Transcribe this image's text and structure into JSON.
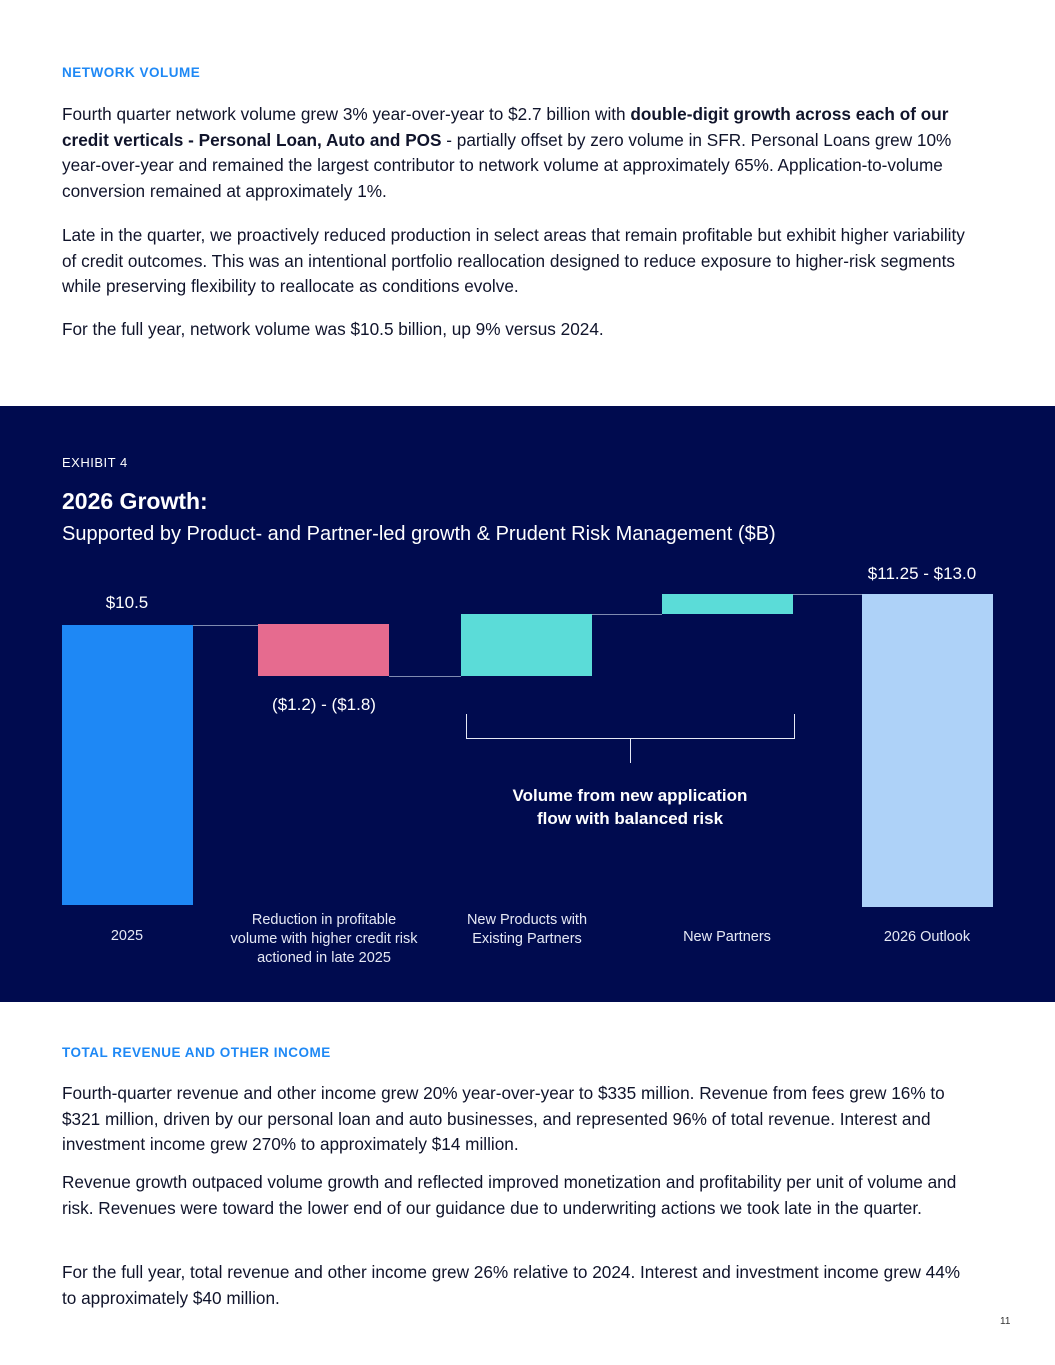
{
  "network_volume": {
    "heading": "NETWORK VOLUME",
    "p1_pre": "Fourth quarter network volume grew 3% year-over-year to $2.7 billion with ",
    "p1_bold": "double-digit growth across each of our credit verticals - Personal Loan, Auto and POS",
    "p1_post": " - partially offset by zero volume in SFR. Personal Loans grew 10% year-over-year and remained the largest contributor to network volume at approximately 65%. Application-to-volume conversion remained at approximately 1%.",
    "p2": "Late in the quarter, we proactively reduced production in select areas that remain profitable but exhibit higher variability of credit outcomes. This was an intentional portfolio reallocation designed to reduce exposure to higher-risk segments while preserving flexibility to reallocate as conditions evolve.",
    "p3": "For the full year, network volume was $10.5 billion, up 9% versus 2024."
  },
  "exhibit": {
    "label": "EXHIBIT 4",
    "title": "2026 Growth:",
    "subtitle": "Supported by Product- and Partner-led growth & Prudent Risk Management ($B)",
    "annotation": "Volume from new application flow with balanced risk"
  },
  "chart_data": {
    "type": "waterfall",
    "categories": [
      "2025",
      "Reduction in profitable volume with higher credit risk actioned in late 2025",
      "New Products with Existing Partners",
      "New Partners",
      "2026 Outlook"
    ],
    "data_labels": [
      "$10.5",
      "($1.2) - ($1.8)",
      "",
      "",
      "$11.25 - $13.0"
    ],
    "values": [
      10.5,
      [
        -1.2,
        -1.8
      ],
      null,
      null,
      [
        11.25,
        13.0
      ]
    ],
    "colors": [
      "#1e88f5",
      "#e66b8f",
      "#5bdcd8",
      "#5bdcd8",
      "#aed2f8"
    ],
    "grid": false,
    "legend": "none"
  },
  "revenue": {
    "heading": "TOTAL REVENUE AND OTHER INCOME",
    "p1": "Fourth-quarter revenue and other income grew 20% year-over-year to $335 million. Revenue from fees grew 16% to $321 million, driven by our personal loan and auto businesses, and represented 96% of total revenue. Interest and investment income grew 270% to approximately $14 million.",
    "p2": "Revenue growth outpaced volume growth and reflected improved monetization and profitability per unit of volume and risk. Revenues were toward the lower end of our guidance due to underwriting actions we took late in the quarter.",
    "p3": "For the full year, total revenue and other income grew 26% relative to 2024. Interest and investment income grew 44% to approximately $40 million."
  },
  "page_number": "11"
}
